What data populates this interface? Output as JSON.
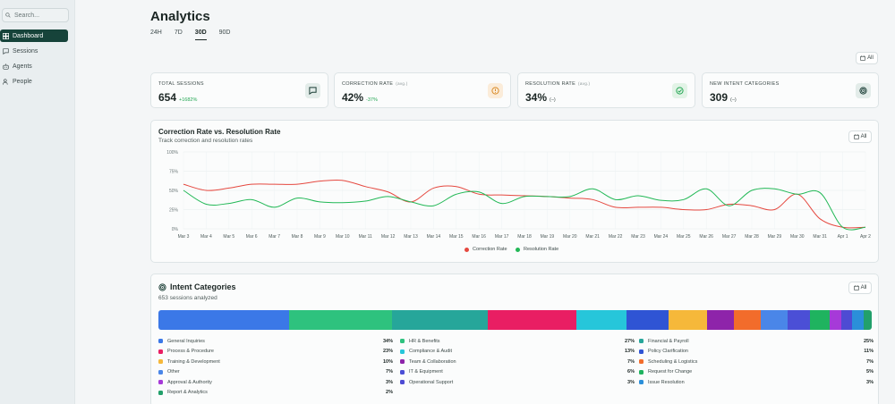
{
  "sidebar": {
    "search_placeholder": "Search...",
    "items": [
      {
        "label": "Dashboard",
        "icon": "dashboard-icon",
        "active": true
      },
      {
        "label": "Sessions",
        "icon": "chat-icon",
        "active": false
      },
      {
        "label": "Agents",
        "icon": "agents-icon",
        "active": false
      },
      {
        "label": "People",
        "icon": "people-icon",
        "active": false
      }
    ]
  },
  "header": {
    "title": "Analytics",
    "ranges": [
      "24H",
      "7D",
      "30D",
      "90D"
    ],
    "active_range": "30D",
    "all_label": "All"
  },
  "stats": [
    {
      "label": "TOTAL SESSIONS",
      "qualifier": "",
      "value": "654",
      "delta": "+1682%",
      "delta_color": "#22a652",
      "icon": "chat-icon",
      "icon_bg": "#e3ece9",
      "icon_color": "#1b3e36"
    },
    {
      "label": "CORRECTION RATE",
      "qualifier": "(avg.)",
      "value": "42%",
      "delta": "-37%",
      "delta_color": "#22a652",
      "icon": "alert-icon",
      "icon_bg": "#fbecd9",
      "icon_color": "#d98a25"
    },
    {
      "label": "RESOLUTION RATE",
      "qualifier": "(avg.)",
      "value": "34%",
      "delta": "(–)",
      "delta_color": "#3d4a49",
      "icon": "check-icon",
      "icon_bg": "#e2f3e6",
      "icon_color": "#22a652"
    },
    {
      "label": "NEW INTENT CATEGORIES",
      "qualifier": "",
      "value": "309",
      "delta": "(–)",
      "delta_color": "#3d4a49",
      "icon": "target-icon",
      "icon_bg": "#e3ece9",
      "icon_color": "#1b3e36"
    }
  ],
  "line_card": {
    "title": "Correction Rate vs. Resolution Rate",
    "subtitle": "Track correction and resolution rates",
    "all_label": "All"
  },
  "chart_data": {
    "type": "line",
    "x": [
      "Mar 3",
      "Mar 4",
      "Mar 5",
      "Mar 6",
      "Mar 7",
      "Mar 8",
      "Mar 9",
      "Mar 10",
      "Mar 11",
      "Mar 12",
      "Mar 13",
      "Mar 14",
      "Mar 15",
      "Mar 16",
      "Mar 17",
      "Mar 18",
      "Mar 19",
      "Mar 20",
      "Mar 21",
      "Mar 22",
      "Mar 23",
      "Mar 24",
      "Mar 25",
      "Mar 26",
      "Mar 27",
      "Mar 28",
      "Mar 29",
      "Mar 30",
      "Mar 31",
      "Apr 1",
      "Apr 2"
    ],
    "yticks": [
      "0%",
      "25%",
      "50%",
      "75%",
      "100%"
    ],
    "ylim": [
      0,
      100
    ],
    "grid": true,
    "legend_position": "bottom-center",
    "series": [
      {
        "name": "Correction Rate",
        "color": "#e5483f",
        "values": [
          58,
          50,
          53,
          58,
          58,
          58,
          62,
          63,
          55,
          48,
          35,
          53,
          55,
          45,
          44,
          43,
          42,
          40,
          38,
          28,
          28,
          28,
          25,
          25,
          32,
          30,
          25,
          45,
          13,
          2,
          2
        ]
      },
      {
        "name": "Resolution Rate",
        "color": "#22b856",
        "values": [
          50,
          32,
          33,
          38,
          28,
          40,
          35,
          34,
          36,
          42,
          35,
          30,
          45,
          48,
          33,
          42,
          42,
          42,
          52,
          38,
          43,
          37,
          38,
          52,
          30,
          50,
          52,
          45,
          47,
          2,
          2
        ]
      }
    ]
  },
  "intent_card": {
    "title": "Intent Categories",
    "subtitle": "653 sessions analyzed",
    "all_label": "All",
    "categories": [
      {
        "label": "General Inquiries",
        "pct": "34%",
        "share": 34,
        "color": "#3b78e7"
      },
      {
        "label": "HR & Benefits",
        "pct": "27%",
        "share": 27,
        "color": "#2ec27e"
      },
      {
        "label": "Financial & Payroll",
        "pct": "25%",
        "share": 25,
        "color": "#26a69a"
      },
      {
        "label": "Process & Procedure",
        "pct": "23%",
        "share": 23,
        "color": "#e91e63"
      },
      {
        "label": "Compliance & Audit",
        "pct": "13%",
        "share": 13,
        "color": "#26c6da"
      },
      {
        "label": "Policy Clarification",
        "pct": "11%",
        "share": 11,
        "color": "#2f54d4"
      },
      {
        "label": "Training & Development",
        "pct": "10%",
        "share": 10,
        "color": "#f6b83a"
      },
      {
        "label": "Team & Collaboration",
        "pct": "7%",
        "share": 7,
        "color": "#8e24aa"
      },
      {
        "label": "Scheduling & Logistics",
        "pct": "7%",
        "share": 7,
        "color": "#f26c2b"
      },
      {
        "label": "Other",
        "pct": "7%",
        "share": 7,
        "color": "#4a86e8"
      },
      {
        "label": "IT & Equipment",
        "pct": "6%",
        "share": 6,
        "color": "#4b4fd6"
      },
      {
        "label": "Request for Change",
        "pct": "5%",
        "share": 5,
        "color": "#1fb35f"
      },
      {
        "label": "Approval & Authority",
        "pct": "3%",
        "share": 3,
        "color": "#a63ad8"
      },
      {
        "label": "Operational Support",
        "pct": "3%",
        "share": 3,
        "color": "#4e4bd3"
      },
      {
        "label": "Issue Resolution",
        "pct": "3%",
        "share": 3,
        "color": "#2b8fd9"
      },
      {
        "label": "Report & Analytics",
        "pct": "2%",
        "share": 2,
        "color": "#22a06b"
      }
    ]
  }
}
